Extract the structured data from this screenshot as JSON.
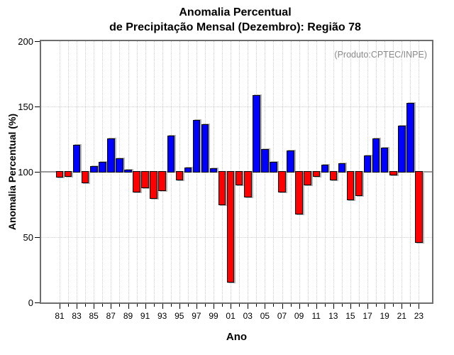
{
  "title": {
    "line1": "Anomalia Percentual",
    "line2": "de Precipitação Mensal (Dezembro): Região 78"
  },
  "annotation": "(Produto:CPTEC/INPE)",
  "chart_data": {
    "type": "bar",
    "title": "Anomalia Percentual de Precipitação Mensal (Dezembro): Região 78",
    "xlabel": "Ano",
    "ylabel": "Anomalia Percentual (%)",
    "ylim": [
      0,
      200
    ],
    "yticks": [
      0,
      50,
      100,
      150,
      200
    ],
    "hgridlines": [
      50,
      100,
      150
    ],
    "baseline": 100,
    "xtick_label_every": 2,
    "categories": [
      "81",
      "82",
      "83",
      "84",
      "85",
      "86",
      "87",
      "88",
      "89",
      "90",
      "91",
      "92",
      "93",
      "94",
      "95",
      "96",
      "97",
      "98",
      "99",
      "00",
      "01",
      "02",
      "03",
      "04",
      "05",
      "06",
      "07",
      "08",
      "09",
      "10",
      "11",
      "12",
      "13",
      "14",
      "15",
      "16",
      "17",
      "18",
      "19",
      "20",
      "21",
      "22",
      "23"
    ],
    "values": [
      96,
      97,
      120,
      92,
      104,
      107,
      125,
      110,
      101,
      85,
      88,
      80,
      86,
      127,
      94,
      103,
      139,
      136,
      102,
      75,
      16,
      90,
      81,
      158,
      117,
      107,
      85,
      116,
      68,
      90,
      97,
      105,
      94,
      106,
      79,
      82,
      112,
      125,
      118,
      98,
      135,
      152,
      46
    ],
    "colors": {
      "above_baseline": "#0000ff",
      "below_baseline": "#ff0000",
      "bar_border": "#000000",
      "bar_shadow": "#b4b4b4",
      "grid": "#cfcfcf",
      "baseline_line": "#999999",
      "frame": "#6e6e6e",
      "annotation_text": "#8a8a8a"
    },
    "legend": null,
    "grid": true
  }
}
